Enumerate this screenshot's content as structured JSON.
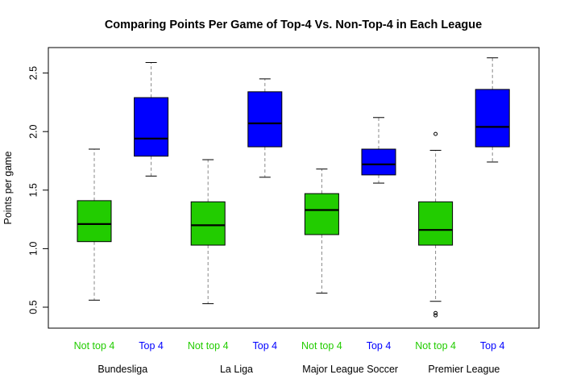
{
  "chart_data": {
    "type": "boxplot",
    "title": "Comparing Points Per Game of Top-4 Vs. Non-Top-4 in Each League",
    "ylabel": "Points per game",
    "xlabel": "",
    "ylim": [
      0.35,
      2.7
    ],
    "yticks": [
      0.5,
      1.0,
      1.5,
      2.0,
      2.5
    ],
    "ytick_labels": [
      "0.5",
      "1.0",
      "1.5",
      "2.0",
      "2.5"
    ],
    "grid": false,
    "groups": [
      "Not top 4",
      "Top 4"
    ],
    "group_colors": {
      "Not top 4": "#22cc00",
      "Top 4": "#0000ff"
    },
    "group_label_colors": {
      "Not top 4": "#22cc00",
      "Top 4": "#0000ff"
    },
    "leagues": [
      "Bundesliga",
      "La Liga",
      "Major League Soccer",
      "Premier League"
    ],
    "boxes": [
      {
        "league": "Bundesliga",
        "group": "Not top 4",
        "min": 0.56,
        "q1": 1.06,
        "median": 1.21,
        "q3": 1.41,
        "max": 1.85,
        "outliers": []
      },
      {
        "league": "Bundesliga",
        "group": "Top 4",
        "min": 1.62,
        "q1": 1.79,
        "median": 1.94,
        "q3": 2.29,
        "max": 2.59,
        "outliers": []
      },
      {
        "league": "La Liga",
        "group": "Not top 4",
        "min": 0.53,
        "q1": 1.03,
        "median": 1.2,
        "q3": 1.4,
        "max": 1.76,
        "outliers": []
      },
      {
        "league": "La Liga",
        "group": "Top 4",
        "min": 1.61,
        "q1": 1.87,
        "median": 2.07,
        "q3": 2.34,
        "max": 2.45,
        "outliers": []
      },
      {
        "league": "Major League Soccer",
        "group": "Not top 4",
        "min": 0.62,
        "q1": 1.12,
        "median": 1.33,
        "q3": 1.47,
        "max": 1.68,
        "outliers": []
      },
      {
        "league": "Major League Soccer",
        "group": "Top 4",
        "min": 1.56,
        "q1": 1.63,
        "median": 1.72,
        "q3": 1.85,
        "max": 2.12,
        "outliers": []
      },
      {
        "league": "Premier League",
        "group": "Not top 4",
        "min": 0.55,
        "q1": 1.03,
        "median": 1.16,
        "q3": 1.4,
        "max": 1.84,
        "outliers": [
          1.98,
          0.45,
          0.43
        ]
      },
      {
        "league": "Premier League",
        "group": "Top 4",
        "min": 1.74,
        "q1": 1.87,
        "median": 2.04,
        "q3": 2.36,
        "max": 2.63,
        "outliers": []
      }
    ]
  }
}
